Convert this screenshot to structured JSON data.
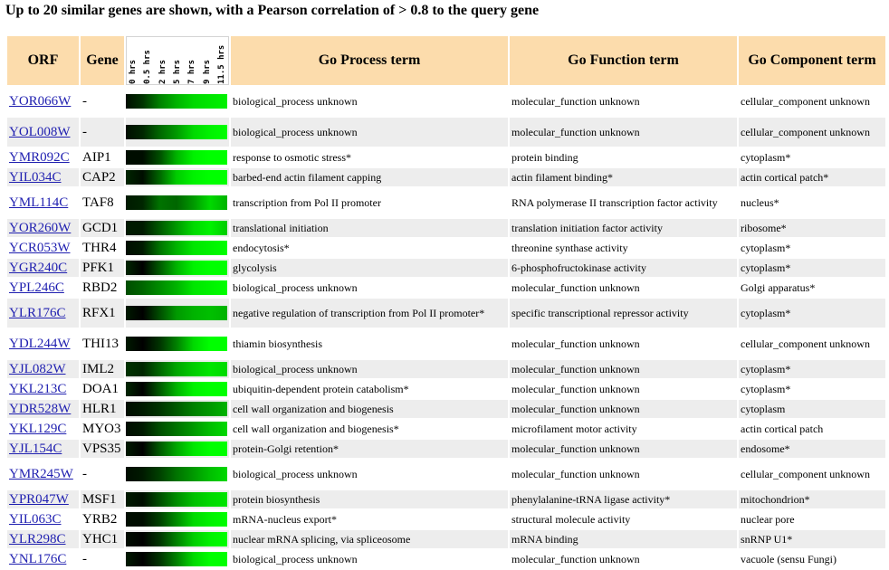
{
  "headline": "Up to 20 similar genes are shown, with a Pearson correlation of > 0.8 to the query gene",
  "columns": {
    "orf": "ORF",
    "gene": "Gene",
    "process": "Go Process term",
    "function": "Go Function term",
    "component": "Go Component term",
    "timepoints": [
      "0 hrs",
      "0.5 hrs",
      "2 hrs",
      "5 hrs",
      "7 hrs",
      "9 hrs",
      "11.5 hrs"
    ]
  },
  "colors": {
    "header_bg": "#fcdcac",
    "alt_row_bg": "#ededed",
    "link": "#1f1fb0",
    "expression_low": "#000000",
    "expression_high": "#00ff00"
  },
  "rows": [
    {
      "orf": "YOR066W",
      "gene": "-",
      "process": "biological_process unknown",
      "function": "molecular_function unknown",
      "component": "cellular_component unknown",
      "expr": [
        0.05,
        0.2,
        0.5,
        0.7,
        0.85,
        0.9,
        0.95
      ]
    },
    {
      "orf": "YOL008W",
      "gene": "-",
      "process": "biological_process unknown",
      "function": "molecular_function unknown",
      "component": "cellular_component unknown",
      "expr": [
        0.05,
        0.15,
        0.4,
        0.6,
        0.85,
        0.95,
        1.0
      ]
    },
    {
      "orf": "YMR092C",
      "gene": "AIP1",
      "process": "response to osmotic stress*",
      "function": "protein binding",
      "component": "cytoplasm*",
      "expr": [
        0.05,
        0.05,
        0.3,
        0.7,
        0.95,
        1.0,
        1.0
      ]
    },
    {
      "orf": "YIL034C",
      "gene": "CAP2",
      "process": "barbed-end actin filament capping",
      "function": "actin filament binding*",
      "component": "actin cortical patch*",
      "expr": [
        0.15,
        0.05,
        0.4,
        0.8,
        0.95,
        1.0,
        1.0
      ]
    },
    {
      "orf": "YML114C",
      "gene": "TAF8",
      "process": "transcription from Pol II promoter",
      "function": "RNA polymerase II transcription factor activity",
      "component": "nucleus*",
      "expr": [
        0.1,
        0.15,
        0.45,
        0.4,
        0.6,
        0.85,
        0.7
      ]
    },
    {
      "orf": "YOR260W",
      "gene": "GCD1",
      "process": "translational initiation",
      "function": "translation initiation factor activity",
      "component": "ribosome*",
      "expr": [
        0.1,
        0.1,
        0.35,
        0.6,
        0.85,
        0.95,
        0.8
      ]
    },
    {
      "orf": "YCR053W",
      "gene": "THR4",
      "process": "endocytosis*",
      "function": "threonine synthase activity",
      "component": "cytoplasm*",
      "expr": [
        0.05,
        0.1,
        0.45,
        0.7,
        0.9,
        0.95,
        1.0
      ]
    },
    {
      "orf": "YGR240C",
      "gene": "PFK1",
      "process": "glycolysis",
      "function": "6-phosphofructokinase activity",
      "component": "cytoplasm*",
      "expr": [
        0.15,
        0.0,
        0.35,
        0.7,
        0.95,
        1.0,
        1.0
      ]
    },
    {
      "orf": "YPL246C",
      "gene": "RBD2",
      "process": "biological_process unknown",
      "function": "molecular_function unknown",
      "component": "Golgi apparatus*",
      "expr": [
        0.3,
        0.4,
        0.55,
        0.7,
        0.9,
        0.95,
        1.0
      ]
    },
    {
      "orf": "YLR176C",
      "gene": "RFX1",
      "process": "negative regulation of transcription from Pol II promoter*",
      "function": "specific transcriptional repressor activity",
      "component": "cytoplasm*",
      "expr": [
        0.1,
        0.0,
        0.3,
        0.6,
        0.7,
        0.75,
        0.7
      ]
    },
    {
      "orf": "YDL244W",
      "gene": "THI13",
      "process": "thiamin biosynthesis",
      "function": "molecular_function unknown",
      "component": "cellular_component unknown",
      "expr": [
        0.1,
        0.0,
        0.2,
        0.5,
        0.85,
        1.0,
        1.0
      ]
    },
    {
      "orf": "YJL082W",
      "gene": "IML2",
      "process": "biological_process unknown",
      "function": "molecular_function unknown",
      "component": "cytoplasm*",
      "expr": [
        0.2,
        0.15,
        0.4,
        0.65,
        0.8,
        0.9,
        0.85
      ]
    },
    {
      "orf": "YKL213C",
      "gene": "DOA1",
      "process": "ubiquitin-dependent protein catabolism*",
      "function": "molecular_function unknown",
      "component": "cytoplasm*",
      "expr": [
        0.15,
        0.0,
        0.35,
        0.7,
        0.95,
        1.0,
        1.0
      ]
    },
    {
      "orf": "YDR528W",
      "gene": "HLR1",
      "process": "cell wall organization and biogenesis",
      "function": "molecular_function unknown",
      "component": "cytoplasm",
      "expr": [
        0.05,
        0.1,
        0.2,
        0.35,
        0.5,
        0.6,
        0.7
      ]
    },
    {
      "orf": "YKL129C",
      "gene": "MYO3",
      "process": "cell wall organization and biogenesis*",
      "function": "microfilament motor activity",
      "component": "actin cortical patch",
      "expr": [
        0.05,
        0.1,
        0.3,
        0.45,
        0.6,
        0.75,
        0.85
      ]
    },
    {
      "orf": "YJL154C",
      "gene": "VPS35",
      "process": "protein-Golgi retention*",
      "function": "molecular_function unknown",
      "component": "endosome*",
      "expr": [
        0.1,
        0.0,
        0.35,
        0.65,
        0.9,
        1.0,
        1.0
      ]
    },
    {
      "orf": "YMR245W",
      "gene": "-",
      "process": "biological_process unknown",
      "function": "molecular_function unknown",
      "component": "cellular_component unknown",
      "expr": [
        0.05,
        0.1,
        0.25,
        0.45,
        0.6,
        0.75,
        0.85
      ]
    },
    {
      "orf": "YPR047W",
      "gene": "MSF1",
      "process": "protein biosynthesis",
      "function": "phenylalanine-tRNA ligase activity*",
      "component": "mitochondrion*",
      "expr": [
        0.1,
        0.05,
        0.3,
        0.55,
        0.75,
        0.85,
        0.9
      ]
    },
    {
      "orf": "YIL063C",
      "gene": "YRB2",
      "process": "mRNA-nucleus export*",
      "function": "structural molecule activity",
      "component": "nuclear pore",
      "expr": [
        0.05,
        0.05,
        0.25,
        0.55,
        0.85,
        0.95,
        1.0
      ]
    },
    {
      "orf": "YLR298C",
      "gene": "YHC1",
      "process": "nuclear mRNA splicing, via spliceosome",
      "function": "mRNA binding",
      "component": "snRNP U1*",
      "expr": [
        0.05,
        0.0,
        0.2,
        0.5,
        0.8,
        0.95,
        1.0
      ]
    },
    {
      "orf": "YNL176C",
      "gene": "-",
      "process": "biological_process unknown",
      "function": "molecular_function unknown",
      "component": "vacuole (sensu Fungi)",
      "expr": [
        0.1,
        0.0,
        0.2,
        0.5,
        0.85,
        1.0,
        1.0
      ]
    }
  ]
}
